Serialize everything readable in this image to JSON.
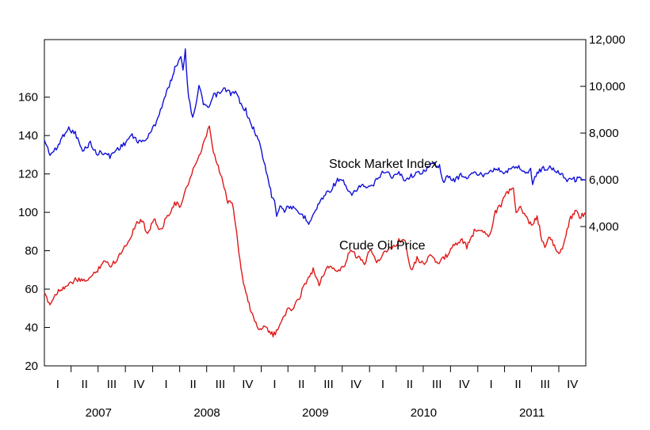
{
  "chart_data": {
    "type": "line",
    "title": "",
    "xlabel": "",
    "ylabel_left": "",
    "ylabel_right": "",
    "x_range": [
      "2007-01-01",
      "2011-12-31"
    ],
    "left_axis": {
      "ylim": [
        20,
        190
      ],
      "ticks": [
        20,
        40,
        60,
        80,
        100,
        120,
        140,
        160
      ]
    },
    "right_axis": {
      "ylim": [
        -1960,
        12000
      ],
      "ticks": [
        4000,
        6000,
        8000,
        10000,
        12000
      ],
      "tick_labels": [
        "4,000",
        "6,000",
        "8,000",
        "10,000",
        "12,000"
      ]
    },
    "quarter_labels": [
      "I",
      "II",
      "III",
      "IV"
    ],
    "years": [
      "2007",
      "2008",
      "2009",
      "2010",
      "2011"
    ],
    "grid": false,
    "series": [
      {
        "name": "Stock Market Index",
        "axis": "right",
        "color": "#1010d8",
        "points": [
          [
            "2007-01-01",
            7700
          ],
          [
            "2007-01-20",
            7100
          ],
          [
            "2007-02-10",
            7300
          ],
          [
            "2007-03-01",
            7800
          ],
          [
            "2007-03-20",
            8200
          ],
          [
            "2007-04-15",
            8000
          ],
          [
            "2007-05-10",
            7200
          ],
          [
            "2007-06-05",
            7600
          ],
          [
            "2007-06-25",
            7100
          ],
          [
            "2007-07-15",
            7200
          ],
          [
            "2007-08-10",
            7000
          ],
          [
            "2007-09-01",
            7300
          ],
          [
            "2007-09-25",
            7500
          ],
          [
            "2007-10-20",
            7900
          ],
          [
            "2007-11-20",
            7600
          ],
          [
            "2007-12-15",
            7800
          ],
          [
            "2008-01-10",
            8400
          ],
          [
            "2008-02-05",
            9300
          ],
          [
            "2008-03-01",
            10200
          ],
          [
            "2008-03-20",
            10900
          ],
          [
            "2008-04-05",
            11300
          ],
          [
            "2008-04-12",
            10800
          ],
          [
            "2008-04-20",
            11500
          ],
          [
            "2008-05-01",
            9500
          ],
          [
            "2008-05-15",
            8700
          ],
          [
            "2008-05-25",
            9200
          ],
          [
            "2008-06-05",
            10000
          ],
          [
            "2008-06-20",
            9300
          ],
          [
            "2008-07-05",
            9000
          ],
          [
            "2008-07-25",
            9600
          ],
          [
            "2008-08-15",
            9700
          ],
          [
            "2008-09-01",
            9900
          ],
          [
            "2008-09-20",
            9700
          ],
          [
            "2008-10-10",
            9700
          ],
          [
            "2008-10-25",
            9200
          ],
          [
            "2008-11-10",
            9000
          ],
          [
            "2008-11-25",
            8400
          ],
          [
            "2008-12-10",
            8100
          ],
          [
            "2008-12-25",
            7600
          ],
          [
            "2009-01-10",
            6800
          ],
          [
            "2009-01-25",
            6000
          ],
          [
            "2009-02-05",
            5300
          ],
          [
            "2009-02-15",
            5200
          ],
          [
            "2009-02-22",
            4500
          ],
          [
            "2009-03-05",
            4900
          ],
          [
            "2009-03-20",
            4700
          ],
          [
            "2009-04-10",
            4900
          ],
          [
            "2009-05-01",
            4600
          ],
          [
            "2009-05-20",
            4500
          ],
          [
            "2009-06-10",
            4200
          ],
          [
            "2009-06-25",
            4500
          ],
          [
            "2009-07-15",
            5000
          ],
          [
            "2009-08-05",
            5400
          ],
          [
            "2009-08-25",
            5600
          ],
          [
            "2009-09-15",
            6000
          ],
          [
            "2009-10-05",
            5900
          ],
          [
            "2009-10-25",
            5400
          ],
          [
            "2009-11-15",
            5500
          ],
          [
            "2009-12-05",
            5800
          ],
          [
            "2009-12-25",
            5600
          ],
          [
            "2010-01-15",
            5800
          ],
          [
            "2010-02-05",
            6200
          ],
          [
            "2010-02-25",
            6400
          ],
          [
            "2010-03-20",
            6100
          ],
          [
            "2010-04-10",
            6300
          ],
          [
            "2010-05-01",
            6000
          ],
          [
            "2010-05-25",
            6200
          ],
          [
            "2010-06-20",
            6300
          ],
          [
            "2010-07-15",
            6500
          ],
          [
            "2010-08-05",
            6700
          ],
          [
            "2010-08-25",
            6600
          ],
          [
            "2010-09-05",
            5900
          ],
          [
            "2010-09-20",
            6100
          ],
          [
            "2010-10-15",
            6000
          ],
          [
            "2010-11-05",
            6200
          ],
          [
            "2010-11-25",
            6100
          ],
          [
            "2010-12-20",
            6300
          ],
          [
            "2011-01-15",
            6200
          ],
          [
            "2011-02-10",
            6400
          ],
          [
            "2011-03-05",
            6500
          ],
          [
            "2011-03-25",
            6300
          ],
          [
            "2011-04-15",
            6400
          ],
          [
            "2011-05-01",
            6500
          ],
          [
            "2011-05-15",
            6600
          ],
          [
            "2011-06-01",
            6400
          ],
          [
            "2011-06-15",
            6300
          ],
          [
            "2011-06-28",
            6400
          ],
          [
            "2011-07-05",
            5900
          ],
          [
            "2011-07-20",
            6300
          ],
          [
            "2011-08-10",
            6500
          ],
          [
            "2011-09-01",
            6500
          ],
          [
            "2011-09-20",
            6400
          ],
          [
            "2011-10-10",
            6300
          ],
          [
            "2011-10-25",
            6000
          ],
          [
            "2011-11-10",
            6100
          ],
          [
            "2011-11-25",
            6000
          ],
          [
            "2011-12-10",
            6100
          ],
          [
            "2011-12-31",
            6000
          ]
        ]
      },
      {
        "name": "Crude Oil Price",
        "axis": "left",
        "color": "#e01818",
        "points": [
          [
            "2007-01-01",
            58
          ],
          [
            "2007-01-20",
            52
          ],
          [
            "2007-02-10",
            58
          ],
          [
            "2007-03-05",
            61
          ],
          [
            "2007-03-25",
            62
          ],
          [
            "2007-04-15",
            65
          ],
          [
            "2007-05-10",
            64
          ],
          [
            "2007-06-05",
            66
          ],
          [
            "2007-06-25",
            69
          ],
          [
            "2007-07-20",
            75
          ],
          [
            "2007-08-10",
            72
          ],
          [
            "2007-08-30",
            75
          ],
          [
            "2007-09-20",
            80
          ],
          [
            "2007-10-15",
            86
          ],
          [
            "2007-11-05",
            94
          ],
          [
            "2007-11-25",
            96
          ],
          [
            "2007-12-15",
            89
          ],
          [
            "2008-01-05",
            97
          ],
          [
            "2008-01-25",
            90
          ],
          [
            "2008-02-20",
            98
          ],
          [
            "2008-03-15",
            105
          ],
          [
            "2008-04-05",
            103
          ],
          [
            "2008-04-25",
            113
          ],
          [
            "2008-05-20",
            124
          ],
          [
            "2008-06-10",
            130
          ],
          [
            "2008-06-30",
            140
          ],
          [
            "2008-07-10",
            145
          ],
          [
            "2008-07-20",
            134
          ],
          [
            "2008-08-05",
            125
          ],
          [
            "2008-08-25",
            116
          ],
          [
            "2008-09-10",
            105
          ],
          [
            "2008-09-25",
            106
          ],
          [
            "2008-10-10",
            90
          ],
          [
            "2008-10-25",
            70
          ],
          [
            "2008-11-10",
            58
          ],
          [
            "2008-11-25",
            50
          ],
          [
            "2008-12-10",
            44
          ],
          [
            "2008-12-25",
            38
          ],
          [
            "2009-01-10",
            42
          ],
          [
            "2009-01-25",
            38
          ],
          [
            "2009-02-10",
            36
          ],
          [
            "2009-02-25",
            38
          ],
          [
            "2009-03-15",
            46
          ],
          [
            "2009-04-01",
            49
          ],
          [
            "2009-04-20",
            50
          ],
          [
            "2009-05-10",
            56
          ],
          [
            "2009-06-01",
            64
          ],
          [
            "2009-06-25",
            70
          ],
          [
            "2009-07-15",
            63
          ],
          [
            "2009-08-05",
            70
          ],
          [
            "2009-08-25",
            72
          ],
          [
            "2009-09-15",
            69
          ],
          [
            "2009-10-10",
            72
          ],
          [
            "2009-10-25",
            80
          ],
          [
            "2009-11-20",
            77
          ],
          [
            "2009-12-15",
            73
          ],
          [
            "2010-01-05",
            82
          ],
          [
            "2010-01-25",
            74
          ],
          [
            "2010-02-20",
            79
          ],
          [
            "2010-03-20",
            82
          ],
          [
            "2010-04-10",
            85
          ],
          [
            "2010-05-01",
            86
          ],
          [
            "2010-05-20",
            70
          ],
          [
            "2010-06-10",
            76
          ],
          [
            "2010-07-01",
            73
          ],
          [
            "2010-07-25",
            78
          ],
          [
            "2010-08-20",
            73
          ],
          [
            "2010-09-15",
            77
          ],
          [
            "2010-10-10",
            82
          ],
          [
            "2010-11-05",
            86
          ],
          [
            "2010-11-25",
            82
          ],
          [
            "2010-12-20",
            90
          ],
          [
            "2011-01-15",
            91
          ],
          [
            "2011-02-10",
            88
          ],
          [
            "2011-03-01",
            100
          ],
          [
            "2011-03-20",
            104
          ],
          [
            "2011-04-10",
            110
          ],
          [
            "2011-05-01",
            113
          ],
          [
            "2011-05-10",
            100
          ],
          [
            "2011-05-25",
            102
          ],
          [
            "2011-06-15",
            97
          ],
          [
            "2011-07-01",
            93
          ],
          [
            "2011-07-20",
            98
          ],
          [
            "2011-08-05",
            86
          ],
          [
            "2011-08-15",
            82
          ],
          [
            "2011-09-01",
            87
          ],
          [
            "2011-09-20",
            81
          ],
          [
            "2011-10-05",
            78
          ],
          [
            "2011-10-25",
            88
          ],
          [
            "2011-11-10",
            97
          ],
          [
            "2011-11-25",
            101
          ],
          [
            "2011-12-10",
            98
          ],
          [
            "2011-12-31",
            99
          ]
        ]
      }
    ],
    "annotations": [
      {
        "text": "Stock Market Index",
        "series": "Stock Market Index"
      },
      {
        "text": "Crude Oil Price",
        "series": "Crude Oil Price"
      }
    ]
  }
}
